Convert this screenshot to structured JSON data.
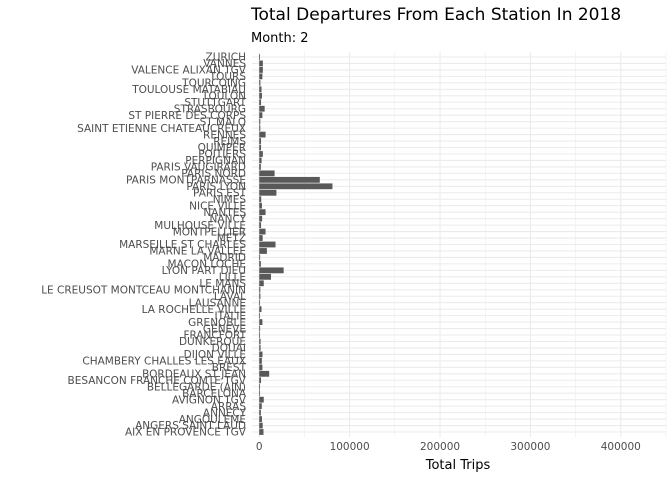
{
  "chart_data": {
    "type": "bar",
    "orientation": "horizontal",
    "title": "Total Departures From Each Station In 2018",
    "subtitle": "Month: 2",
    "xlabel": "Total Trips",
    "ylabel": "",
    "xlim": [
      -8000,
      450000
    ],
    "xticks": [
      0,
      100000,
      200000,
      300000,
      400000
    ],
    "xtick_labels": [
      "0",
      "100000",
      "200000",
      "300000",
      "400000"
    ],
    "grid": true,
    "categories": [
      "AIX EN PROVENCE TGV",
      "ANGERS SAINT LAUD",
      "ANGOULEME",
      "ANNECY",
      "ARRAS",
      "AVIGNON TGV",
      "BARCELONA",
      "BELLEGARDE (AIN)",
      "BESANCON FRANCHE COMTE TGV",
      "BORDEAUX ST JEAN",
      "BREST",
      "CHAMBERY CHALLES LES EAUX",
      "DIJON VILLE",
      "DOUAI",
      "DUNKERQUE",
      "FRANCFORT",
      "GENEVE",
      "GRENOBLE",
      "ITALIE",
      "LA ROCHELLE VILLE",
      "LAUSANNE",
      "LAVAL",
      "LE CREUSOT MONTCEAU MONTCHANIN",
      "LE MANS",
      "LILLE",
      "LYON PART DIEU",
      "MACON LOCHE",
      "MADRID",
      "MARNE LA VALLEE",
      "MARSEILLE ST CHARLES",
      "METZ",
      "MONTPELLIER",
      "MULHOUSE VILLE",
      "NANCY",
      "NANTES",
      "NICE VILLE",
      "NIMES",
      "PARIS EST",
      "PARIS LYON",
      "PARIS MONTPARNASSE",
      "PARIS NORD",
      "PARIS VAUGIRARD",
      "PERPIGNAN",
      "POITIERS",
      "QUIMPER",
      "REIMS",
      "RENNES",
      "SAINT ETIENNE CHATEAUCREUX",
      "ST MALO",
      "ST PIERRE DES CORPS",
      "STRASBOURG",
      "STUTTGART",
      "TOULON",
      "TOULOUSE MATABIAU",
      "TOURCOING",
      "TOURS",
      "VALENCE ALIXAN TGV",
      "VANNES",
      "ZURICH"
    ],
    "values": [
      4700,
      3800,
      3000,
      1800,
      2800,
      5000,
      500,
      900,
      2000,
      11000,
      3500,
      2900,
      3600,
      1500,
      1500,
      700,
      1000,
      3500,
      600,
      2500,
      800,
      1300,
      1200,
      5000,
      13000,
      27000,
      1800,
      1000,
      8500,
      18000,
      3800,
      7000,
      2000,
      3200,
      7000,
      3000,
      2200,
      19000,
      81000,
      67000,
      17000,
      1800,
      2600,
      4000,
      2000,
      2000,
      7000,
      1200,
      1200,
      3500,
      6000,
      2000,
      3000,
      2500,
      1300,
      3500,
      4000,
      4000,
      500
    ]
  }
}
